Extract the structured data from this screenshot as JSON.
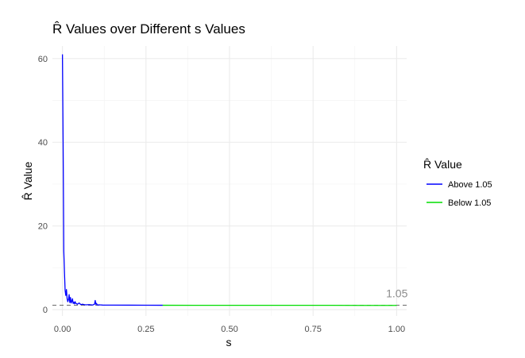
{
  "chart_data": {
    "type": "line",
    "title": "R̂ Values over Different s Values",
    "xlabel": "s",
    "ylabel": "R̂ Value",
    "xlim": [
      -0.03,
      1.03
    ],
    "ylim": [
      -1.5,
      63
    ],
    "x_ticks": [
      0.0,
      0.25,
      0.5,
      0.75,
      1.0
    ],
    "x_tick_labels": [
      "0.00",
      "0.25",
      "0.50",
      "0.75",
      "1.00"
    ],
    "y_ticks": [
      0,
      20,
      40,
      60
    ],
    "y_tick_labels": [
      "0",
      "20",
      "40",
      "60"
    ],
    "grid": true,
    "legend": {
      "title": "R̂ Value",
      "placement": "right",
      "entries": [
        {
          "label": "Above 1.05",
          "color": "#0000ff"
        },
        {
          "label": "Below 1.05",
          "color": "#00dd00"
        }
      ]
    },
    "reference_line": {
      "y": 1.05,
      "label": "1.05",
      "style": "dashed",
      "color": "#555555"
    },
    "series": [
      {
        "name": "Above 1.05",
        "color": "#0000ff",
        "x": [
          0.0,
          0.002,
          0.004,
          0.006,
          0.008,
          0.01,
          0.012,
          0.014,
          0.016,
          0.018,
          0.02,
          0.022,
          0.024,
          0.026,
          0.028,
          0.03,
          0.032,
          0.034,
          0.036,
          0.038,
          0.04,
          0.045,
          0.05,
          0.055,
          0.06,
          0.065,
          0.07,
          0.08,
          0.09,
          0.096,
          0.098,
          0.1,
          0.102,
          0.104,
          0.11,
          0.12,
          0.15,
          0.2,
          0.25,
          0.3
        ],
        "y": [
          61,
          40,
          14,
          9,
          4.6,
          3.4,
          4.8,
          2.6,
          1.9,
          2.4,
          3.6,
          1.7,
          2.9,
          1.6,
          2.0,
          2.6,
          1.5,
          1.8,
          1.4,
          1.9,
          1.5,
          1.3,
          1.6,
          1.2,
          1.3,
          1.2,
          1.15,
          1.2,
          1.1,
          1.3,
          2.2,
          1.3,
          1.5,
          1.1,
          1.15,
          1.1,
          1.08,
          1.07,
          1.06,
          1.05
        ]
      },
      {
        "name": "Below 1.05",
        "color": "#00dd00",
        "x": [
          0.3,
          0.4,
          0.5,
          0.6,
          0.7,
          0.8,
          0.9,
          1.0
        ],
        "y": [
          1.05,
          1.04,
          1.04,
          1.03,
          1.03,
          1.03,
          1.02,
          1.02
        ]
      }
    ]
  }
}
